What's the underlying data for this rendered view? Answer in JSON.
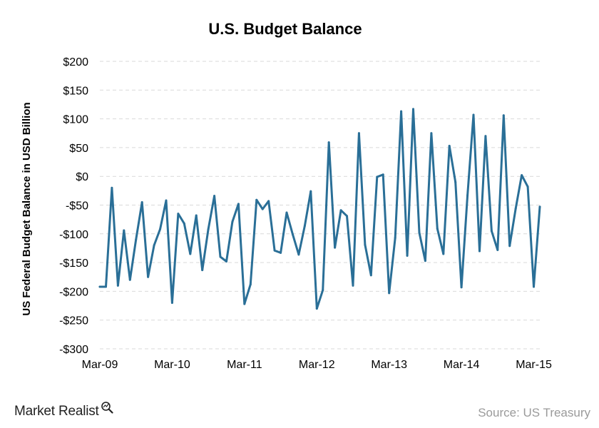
{
  "chart_data": {
    "type": "line",
    "title": "U.S.  Budget Balance",
    "ylabel": "US Federal Budget Balance in USD Billion",
    "xlabel": "",
    "ylim": [
      -300,
      200
    ],
    "yticks": [
      200,
      150,
      100,
      50,
      0,
      -50,
      -100,
      -150,
      -200,
      -250,
      -300
    ],
    "ytick_labels": [
      "$200",
      "$150",
      "$100",
      "$50",
      "$0",
      "-$50",
      "-$100",
      "-$150",
      "-$200",
      "-$250",
      "-$300"
    ],
    "xtick_labels": [
      "Mar-09",
      "Mar-10",
      "Mar-11",
      "Mar-12",
      "Mar-13",
      "Mar-14",
      "Mar-15"
    ],
    "grid": true,
    "line_color": "#2a6f97",
    "grid_color": "#d9d9d9",
    "series": [
      {
        "values": [
          -192,
          -192,
          -20,
          -190,
          -94,
          -180,
          -110,
          -45,
          -175,
          -120,
          -92,
          -42,
          -220,
          -65,
          -82,
          -135,
          -68,
          -163,
          -92,
          -34,
          -140,
          -148,
          -79,
          -48,
          -222,
          -188,
          -41,
          -57,
          -43,
          -129,
          -133,
          -63,
          -101,
          -136,
          -86,
          -26,
          -230,
          -198,
          59,
          -124,
          -59,
          -69,
          -190,
          75,
          -119,
          -172,
          -1,
          3,
          -203,
          -107,
          113,
          -138,
          117,
          -98,
          -147,
          75,
          -91,
          -135,
          53,
          -10,
          -193,
          -33,
          107,
          -130,
          70,
          -95,
          -128,
          106,
          -121,
          -56,
          2,
          -18,
          -192,
          -53
        ]
      }
    ]
  },
  "footer": {
    "brand": "Market Realist",
    "brand_icon": "magnifier-chart-icon",
    "source": "Source: US Treasury"
  }
}
